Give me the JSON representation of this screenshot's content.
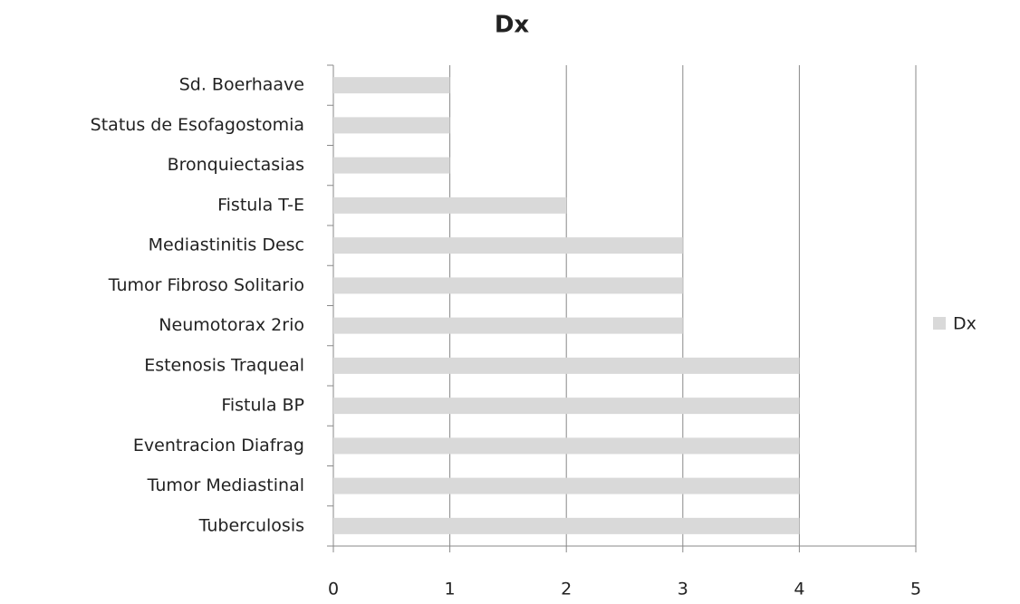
{
  "chart_data": {
    "type": "bar",
    "orientation": "horizontal",
    "title": "Dx",
    "categories": [
      "Sd. Boerhaave",
      "Status de Esofagostomia",
      "Bronquiectasias",
      "Fistula T-E",
      "Mediastinitis Desc",
      "Tumor Fibroso Solitario",
      "Neumotorax 2rio",
      "Estenosis Traqueal",
      "Fistula BP",
      "Eventracion Diafrag",
      "Tumor Mediastinal",
      "Tuberculosis"
    ],
    "series": [
      {
        "name": "Dx",
        "color": "#d9d9d9",
        "values": [
          1,
          1,
          1,
          2,
          3,
          3,
          3,
          4,
          4,
          4,
          4,
          4
        ]
      }
    ],
    "xlim": [
      0,
      5
    ],
    "xticks": [
      0,
      1,
      2,
      3,
      4,
      5
    ],
    "grid": true,
    "legend": "right"
  }
}
